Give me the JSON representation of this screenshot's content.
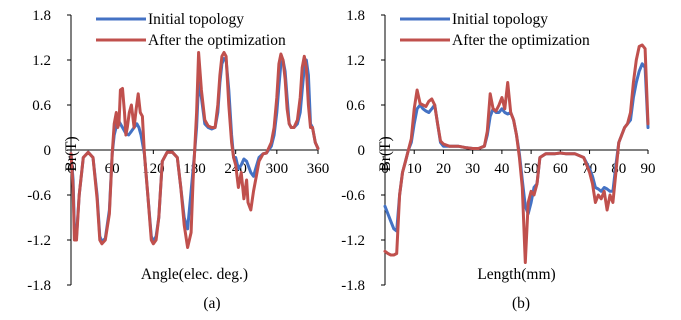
{
  "chart_data": [
    {
      "type": "line",
      "caption": "(a)",
      "xlabel": "Angle(elec. deg.)",
      "ylabel": "Br(T)",
      "xlim": [
        0,
        360
      ],
      "ylim": [
        -1.8,
        1.8
      ],
      "xticks": [
        0,
        60,
        120,
        180,
        240,
        300,
        360
      ],
      "xtick_labels": [
        "0",
        "60",
        "120",
        "180",
        "240",
        "300",
        "360"
      ],
      "yticks": [
        1.8,
        1.2,
        0.6,
        0,
        -0.6,
        -1.2,
        -1.8
      ],
      "ytick_labels": [
        "1.8",
        "1.2",
        "0.6",
        "0",
        "-0.6",
        "-1.2",
        "-1.8"
      ],
      "legend_position": "top-left",
      "series": [
        {
          "name": "Initial topology",
          "color": "#4472c4",
          "x": [
            0,
            3,
            5,
            8,
            12,
            18,
            25,
            32,
            38,
            42,
            45,
            50,
            56,
            60,
            63,
            67,
            70,
            75,
            80,
            84,
            88,
            92,
            96,
            99,
            102,
            107,
            112,
            117,
            120,
            124,
            128,
            133,
            140,
            148,
            155,
            160,
            165,
            170,
            175,
            180,
            183,
            186,
            190,
            195,
            200,
            205,
            210,
            214,
            217,
            220,
            223,
            226,
            230,
            234,
            237,
            240,
            244,
            248,
            252,
            256,
            258,
            262,
            266,
            270,
            274,
            280,
            285,
            292,
            296,
            300,
            303,
            306,
            309,
            312,
            315,
            318,
            321,
            325,
            330,
            334,
            337,
            340,
            343,
            346,
            349,
            352,
            356,
            360
          ],
          "y": [
            -0.05,
            -0.4,
            -1.05,
            -1.15,
            -0.6,
            -0.1,
            -0.03,
            -0.1,
            -0.6,
            -1.15,
            -1.22,
            -1.18,
            -0.8,
            -0.05,
            0.2,
            0.35,
            0.38,
            0.3,
            0.22,
            0.2,
            0.25,
            0.3,
            0.35,
            0.3,
            0.2,
            -0.05,
            -0.6,
            -1.15,
            -1.22,
            -1.15,
            -0.9,
            -0.15,
            -0.03,
            -0.03,
            -0.1,
            -0.5,
            -0.9,
            -1.05,
            -0.55,
            -0.05,
            0.3,
            0.9,
            0.7,
            0.35,
            0.3,
            0.28,
            0.3,
            0.5,
            0.9,
            1.15,
            1.22,
            1.2,
            0.8,
            0.2,
            -0.1,
            -0.1,
            -0.25,
            -0.2,
            -0.12,
            -0.15,
            -0.2,
            -0.3,
            -0.35,
            -0.22,
            -0.1,
            -0.05,
            -0.04,
            0.05,
            0.2,
            0.5,
            0.85,
            1.15,
            1.2,
            1.05,
            0.7,
            0.35,
            0.3,
            0.3,
            0.35,
            0.5,
            0.8,
            1.1,
            1.2,
            1.0,
            0.35,
            0.3,
            0.1,
            0.02
          ]
        },
        {
          "name": "After the optimization",
          "color": "#c0504d",
          "x": [
            0,
            3,
            5,
            8,
            12,
            18,
            25,
            32,
            38,
            42,
            45,
            50,
            56,
            60,
            63,
            66,
            68,
            70,
            72,
            75,
            78,
            80,
            82,
            85,
            88,
            92,
            95,
            98,
            101,
            104,
            107,
            112,
            117,
            120,
            124,
            128,
            133,
            140,
            148,
            155,
            160,
            165,
            170,
            175,
            178,
            180,
            183,
            186,
            190,
            195,
            200,
            205,
            210,
            214,
            217,
            220,
            223,
            226,
            230,
            234,
            237,
            240,
            244,
            248,
            252,
            256,
            258,
            262,
            266,
            270,
            274,
            280,
            285,
            292,
            296,
            300,
            303,
            306,
            309,
            312,
            315,
            318,
            321,
            325,
            330,
            334,
            337,
            340,
            343,
            346,
            349,
            352,
            356,
            360
          ],
          "y": [
            -0.05,
            -0.5,
            -1.2,
            -1.2,
            -0.6,
            -0.1,
            -0.03,
            -0.1,
            -0.65,
            -1.2,
            -1.25,
            -1.2,
            -0.85,
            -0.05,
            0.35,
            0.5,
            0.3,
            0.35,
            0.8,
            0.82,
            0.5,
            0.2,
            0.3,
            0.5,
            0.6,
            0.3,
            0.55,
            0.75,
            0.5,
            0.45,
            -0.05,
            -0.6,
            -1.2,
            -1.25,
            -1.2,
            -0.9,
            -0.15,
            -0.03,
            -0.03,
            -0.1,
            -0.5,
            -1.0,
            -1.3,
            -1.1,
            -0.4,
            -0.05,
            0.5,
            1.3,
            0.8,
            0.4,
            0.32,
            0.3,
            0.3,
            0.6,
            1.0,
            1.25,
            1.3,
            1.25,
            0.6,
            0.1,
            -0.1,
            -0.2,
            -0.5,
            -0.3,
            -0.65,
            -0.4,
            -0.7,
            -0.8,
            -0.55,
            -0.35,
            -0.15,
            -0.05,
            -0.04,
            0.1,
            0.3,
            0.7,
            1.15,
            1.28,
            1.2,
            0.95,
            0.55,
            0.35,
            0.3,
            0.3,
            0.4,
            0.7,
            1.1,
            1.25,
            1.1,
            0.6,
            0.3,
            0.3,
            0.1,
            0.02
          ]
        }
      ]
    },
    {
      "type": "line",
      "caption": "(b)",
      "xlabel": "Length(mm)",
      "ylabel": "Br(T)",
      "xlim": [
        0,
        90
      ],
      "ylim": [
        -1.8,
        1.8
      ],
      "xticks": [
        0,
        10,
        20,
        30,
        40,
        50,
        60,
        70,
        80,
        90
      ],
      "xtick_labels": [
        "0",
        "10",
        "20",
        "30",
        "40",
        "50",
        "60",
        "70",
        "80",
        "90"
      ],
      "yticks": [
        1.8,
        1.2,
        0.6,
        0,
        -0.6,
        -1.2,
        -1.8
      ],
      "ytick_labels": [
        "1.8",
        "1.2",
        "0.6",
        "0",
        "-0.6",
        "-1.2",
        "-1.8"
      ],
      "legend_position": "top-left",
      "series": [
        {
          "name": "Initial topology",
          "color": "#4472c4",
          "x": [
            0,
            1,
            2,
            3,
            4,
            5,
            6,
            7,
            8,
            9,
            10,
            11,
            12,
            13,
            14,
            15,
            16,
            17,
            18,
            19,
            20,
            22,
            25,
            28,
            30,
            32,
            34,
            35,
            36,
            37,
            38,
            39,
            40,
            41,
            42,
            43,
            44,
            45,
            46,
            47,
            48,
            49,
            50,
            51,
            52,
            53,
            55,
            58,
            60,
            62,
            65,
            68,
            70,
            71,
            72,
            73,
            74,
            75,
            76,
            77,
            78,
            79,
            80,
            81,
            82,
            83,
            84,
            85,
            86,
            87,
            88,
            89,
            90
          ],
          "y": [
            -0.75,
            -0.85,
            -0.95,
            -1.05,
            -1.08,
            -0.6,
            -0.3,
            -0.15,
            0.0,
            0.1,
            0.35,
            0.55,
            0.6,
            0.55,
            0.52,
            0.5,
            0.55,
            0.6,
            0.35,
            0.1,
            0.05,
            0.05,
            0.05,
            0.03,
            0.02,
            0.02,
            0.05,
            0.2,
            0.45,
            0.55,
            0.5,
            0.5,
            0.55,
            0.5,
            0.48,
            0.5,
            0.4,
            0.2,
            -0.05,
            -0.4,
            -0.75,
            -0.85,
            -0.7,
            -0.5,
            -0.45,
            -0.1,
            -0.05,
            -0.05,
            -0.04,
            -0.05,
            -0.05,
            -0.1,
            -0.25,
            -0.35,
            -0.5,
            -0.52,
            -0.55,
            -0.5,
            -0.52,
            -0.55,
            -0.55,
            -0.2,
            0.1,
            0.2,
            0.3,
            0.35,
            0.4,
            0.7,
            0.9,
            1.05,
            1.15,
            1.1,
            0.3
          ]
        },
        {
          "name": "After the optimization",
          "color": "#c0504d",
          "x": [
            0,
            1,
            2,
            3,
            4,
            5,
            6,
            7,
            8,
            9,
            10,
            11,
            12,
            13,
            14,
            15,
            16,
            17,
            18,
            19,
            20,
            22,
            25,
            28,
            30,
            32,
            34,
            35,
            36,
            37,
            38,
            39,
            40,
            41,
            42,
            43,
            44,
            45,
            46,
            47,
            48,
            49,
            50,
            51,
            52,
            53,
            55,
            58,
            60,
            62,
            65,
            68,
            70,
            71,
            72,
            73,
            74,
            75,
            76,
            77,
            78,
            79,
            80,
            81,
            82,
            83,
            84,
            85,
            86,
            87,
            88,
            89,
            90
          ],
          "y": [
            -1.35,
            -1.38,
            -1.4,
            -1.4,
            -1.38,
            -0.6,
            -0.3,
            -0.15,
            0.0,
            0.15,
            0.55,
            0.8,
            0.62,
            0.6,
            0.58,
            0.65,
            0.68,
            0.6,
            0.35,
            0.12,
            0.08,
            0.05,
            0.05,
            0.03,
            0.02,
            0.02,
            0.05,
            0.25,
            0.75,
            0.55,
            0.52,
            0.6,
            0.7,
            0.55,
            0.9,
            0.5,
            0.4,
            0.2,
            -0.1,
            -0.5,
            -1.5,
            -0.7,
            -0.55,
            -0.6,
            -0.45,
            -0.1,
            -0.05,
            -0.05,
            -0.04,
            -0.05,
            -0.05,
            -0.1,
            -0.3,
            -0.45,
            -0.7,
            -0.6,
            -0.65,
            -0.55,
            -0.8,
            -0.6,
            -0.7,
            -0.3,
            0.1,
            0.2,
            0.3,
            0.35,
            0.5,
            0.9,
            1.2,
            1.38,
            1.4,
            1.35,
            0.35
          ]
        }
      ]
    }
  ]
}
